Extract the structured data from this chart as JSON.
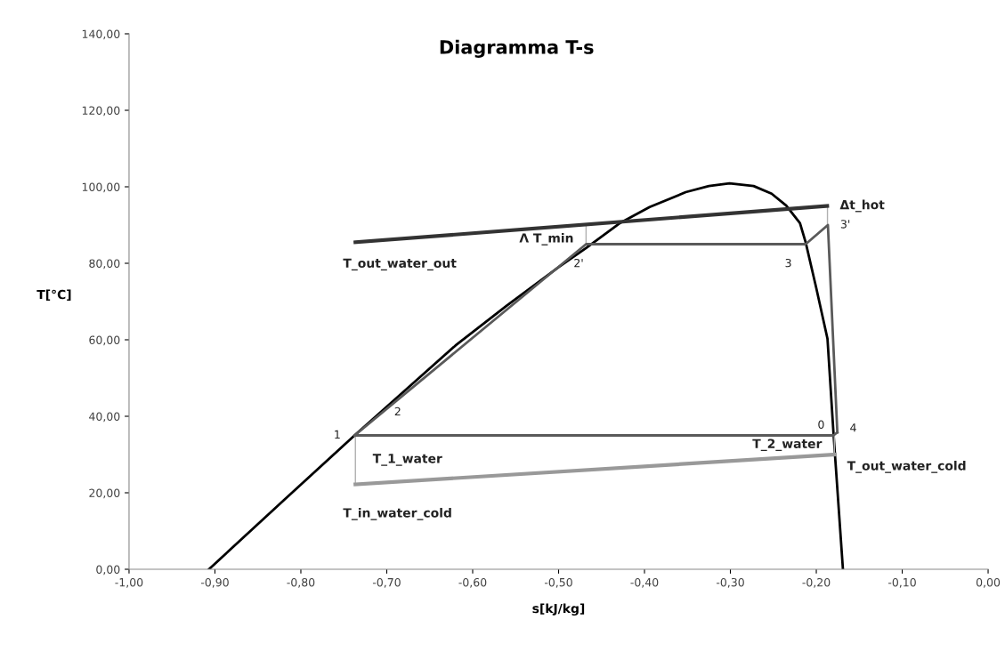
{
  "chart_data": {
    "type": "line",
    "title": "Diagramma T-s",
    "xlabel": "s[kJ/kg]",
    "ylabel": "T[°C]",
    "xlim": [
      -1.0,
      0.0
    ],
    "ylim": [
      0,
      140
    ],
    "xticks": [
      {
        "value": -1.0,
        "label": "-1,00"
      },
      {
        "value": -0.9,
        "label": "-0,90"
      },
      {
        "value": -0.8,
        "label": "-0,80"
      },
      {
        "value": -0.7,
        "label": "-0,70"
      },
      {
        "value": -0.6,
        "label": "-0,60"
      },
      {
        "value": -0.5,
        "label": "-0,50"
      },
      {
        "value": -0.4,
        "label": "-0,40"
      },
      {
        "value": -0.3,
        "label": "-0,30"
      },
      {
        "value": -0.2,
        "label": "-0,20"
      },
      {
        "value": -0.1,
        "label": "-0,10"
      },
      {
        "value": 0,
        "label": "0,00"
      }
    ],
    "yticks": [
      {
        "value": 0,
        "label": "0,00"
      },
      {
        "value": 20,
        "label": "20,00"
      },
      {
        "value": 40,
        "label": "40,00"
      },
      {
        "value": 60,
        "label": "60,00"
      },
      {
        "value": 80,
        "label": "80,00"
      },
      {
        "value": 100,
        "label": "100,00"
      },
      {
        "value": 120,
        "label": "120,00"
      },
      {
        "value": 140,
        "label": "140,00"
      }
    ],
    "grid": false,
    "marker": "none",
    "line_style": "solid",
    "series": [
      {
        "color": "#000000",
        "x": [
          -0.907,
          -0.82,
          -0.7375,
          -0.68,
          -0.62,
          -0.56,
          -0.5,
          -0.468,
          -0.428,
          -0.394,
          -0.352,
          -0.325,
          -0.301,
          -0.273,
          -0.252,
          -0.235,
          -0.219,
          -0.2124,
          -0.2,
          -0.187,
          -0.18,
          -0.169
        ],
        "values": [
          0,
          18,
          35,
          46.5,
          58.5,
          69,
          79,
          84,
          90.6,
          94.7,
          98.6,
          100.2,
          100.9,
          100.2,
          98.2,
          95.1,
          90.5,
          85.5,
          73.5,
          60.3,
          35.6,
          0
        ]
      },
      {
        "color": "#5a5a5a",
        "x": [
          -0.7375,
          -0.468,
          -0.2124,
          -0.1865,
          -0.1755
        ],
        "values": [
          35,
          85,
          85,
          90,
          35.8
        ]
      },
      {
        "color": "#5a5a5a",
        "x": [
          -0.7375,
          -0.18,
          -0.1755
        ],
        "values": [
          35,
          35,
          35.8
        ]
      },
      {
        "color": "#333333",
        "x": [
          -0.7365,
          -0.1873
        ],
        "values": [
          85.5,
          95
        ]
      },
      {
        "color": "#999999",
        "x": [
          -0.7365,
          -0.1785
        ],
        "values": [
          22.2,
          30
        ]
      },
      {
        "color": "#b0b0b0",
        "x": [
          -0.468,
          -0.468
        ],
        "values": [
          85,
          90
        ]
      },
      {
        "color": "#b0b0b0",
        "x": [
          -0.7365,
          -0.7365
        ],
        "values": [
          35,
          22.2
        ]
      },
      {
        "color": "#b0b0b0",
        "x": [
          -0.179,
          -0.179
        ],
        "values": [
          35,
          30
        ]
      },
      {
        "color": "#b0b0b0",
        "x": [
          -0.187,
          -0.187
        ],
        "values": [
          95,
          90
        ]
      }
    ],
    "annotations": [
      {
        "text": "1",
        "x": -0.7375,
        "y": 35
      },
      {
        "text": "2",
        "x": -0.7,
        "y": 42
      },
      {
        "text": "2'",
        "x": -0.468,
        "y": 85
      },
      {
        "text": "3",
        "x": -0.2124,
        "y": 85
      },
      {
        "text": "3'",
        "x": -0.1865,
        "y": 90
      },
      {
        "text": "0",
        "x": -0.18,
        "y": 35
      },
      {
        "text": "4",
        "x": -0.1755,
        "y": 35.8
      },
      {
        "text": "Δt_hot",
        "x": -0.187,
        "y": 95
      },
      {
        "text": "Λ T_min",
        "x": -0.468,
        "y": 85
      },
      {
        "text": "T_out_water_out",
        "x": -0.7365,
        "y": 85.5
      },
      {
        "text": "T_1_water",
        "x": -0.7365,
        "y": 28.6
      },
      {
        "text": "T_in_water_cold",
        "x": -0.7365,
        "y": 22.2
      },
      {
        "text": "T_2_water",
        "x": -0.179,
        "y": 32.5
      },
      {
        "text": "T_out_water_cold",
        "x": -0.1785,
        "y": 30
      }
    ]
  }
}
